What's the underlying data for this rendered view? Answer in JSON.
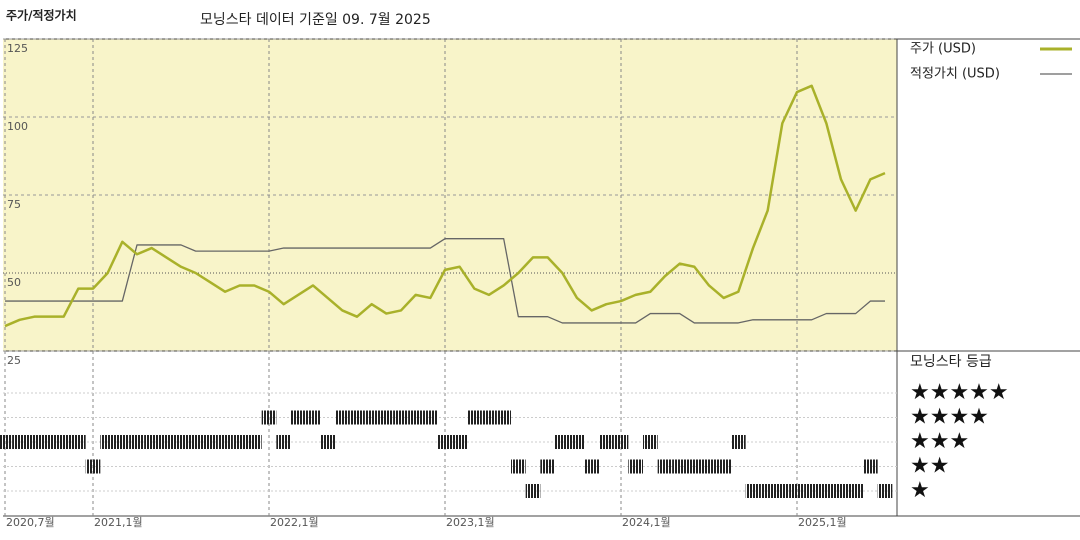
{
  "chart_data": {
    "type": "line",
    "title": "주가/적정가치",
    "subtitle": "모닝스타 데이터 기준일 09. 7월 2025",
    "x": [
      "2020-07",
      "2020-08",
      "2020-09",
      "2020-10",
      "2020-11",
      "2020-12",
      "2021-01",
      "2021-02",
      "2021-03",
      "2021-04",
      "2021-05",
      "2021-06",
      "2021-07",
      "2021-08",
      "2021-09",
      "2021-10",
      "2021-11",
      "2021-12",
      "2022-01",
      "2022-02",
      "2022-03",
      "2022-04",
      "2022-05",
      "2022-06",
      "2022-07",
      "2022-08",
      "2022-09",
      "2022-10",
      "2022-11",
      "2022-12",
      "2023-01",
      "2023-02",
      "2023-03",
      "2023-04",
      "2023-05",
      "2023-06",
      "2023-07",
      "2023-08",
      "2023-09",
      "2023-10",
      "2023-11",
      "2023-12",
      "2024-01",
      "2024-02",
      "2024-03",
      "2024-04",
      "2024-05",
      "2024-06",
      "2024-07",
      "2024-08",
      "2024-09",
      "2024-10",
      "2024-11",
      "2024-12",
      "2025-01",
      "2025-02",
      "2025-03",
      "2025-04",
      "2025-05",
      "2025-06",
      "2025-07"
    ],
    "series": [
      {
        "name": "주가 (USD)",
        "color": "#a9b12a",
        "values": [
          33,
          35,
          36,
          36,
          36,
          45,
          45,
          50,
          60,
          56,
          58,
          55,
          52,
          50,
          47,
          44,
          46,
          46,
          44,
          40,
          43,
          46,
          42,
          38,
          36,
          40,
          37,
          38,
          43,
          42,
          51,
          52,
          45,
          43,
          46,
          50,
          55,
          55,
          50,
          42,
          38,
          40,
          41,
          43,
          44,
          49,
          53,
          52,
          46,
          42,
          44,
          58,
          70,
          98,
          108,
          110,
          98,
          80,
          70,
          80,
          82
        ]
      },
      {
        "name": "적정가치 (USD)",
        "color": "#666666",
        "values": [
          41,
          41,
          41,
          41,
          41,
          41,
          41,
          41,
          41,
          59,
          59,
          59,
          59,
          57,
          57,
          57,
          57,
          57,
          57,
          58,
          58,
          58,
          58,
          58,
          58,
          58,
          58,
          58,
          58,
          58,
          61,
          61,
          61,
          61,
          61,
          36,
          36,
          36,
          34,
          34,
          34,
          34,
          34,
          34,
          37,
          37,
          37,
          34,
          34,
          34,
          34,
          35,
          35,
          35,
          35,
          35,
          37,
          37,
          37,
          41,
          41
        ]
      }
    ],
    "ylim": [
      25,
      125
    ],
    "yticks": [
      25,
      50,
      75,
      100,
      125
    ],
    "xticks": [
      {
        "value": "2020-07",
        "label": "2020,7월"
      },
      {
        "value": "2021-01",
        "label": "2021,1월"
      },
      {
        "value": "2022-01",
        "label": "2022,1월"
      },
      {
        "value": "2023-01",
        "label": "2023,1월"
      },
      {
        "value": "2024-01",
        "label": "2024,1월"
      },
      {
        "value": "2025-01",
        "label": "2025,1월"
      }
    ],
    "rating": {
      "title": "모닝스타 등급",
      "labels": [
        "★★★★★",
        "★★★★",
        "★★★",
        "★★",
        "★"
      ],
      "values": [
        3,
        3,
        3,
        3,
        3,
        3,
        2,
        3,
        3,
        3,
        3,
        3,
        3,
        3,
        3,
        3,
        3,
        3,
        4,
        3,
        4,
        4,
        3,
        4,
        4,
        4,
        4,
        4,
        4,
        4,
        3,
        3,
        4,
        4,
        4,
        2,
        1,
        2,
        3,
        3,
        2,
        3,
        3,
        2,
        3,
        2,
        2,
        2,
        2,
        2,
        3,
        1,
        1,
        1,
        1,
        1,
        1,
        1,
        1,
        2,
        1
      ]
    }
  }
}
